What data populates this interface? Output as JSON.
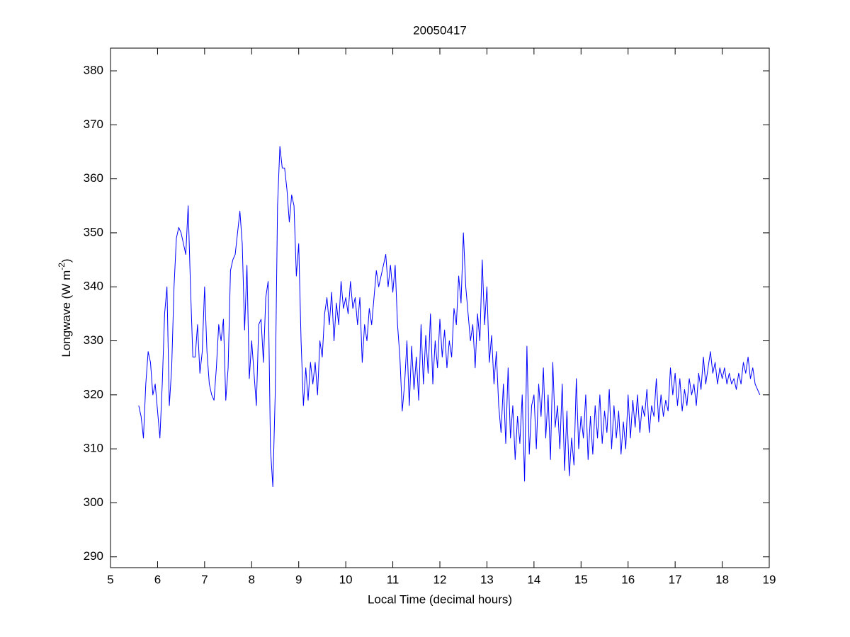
{
  "chart_data": {
    "type": "line",
    "title": "20050417",
    "xlabel": "Local Time (decimal hours)",
    "ylabel_parts": [
      "Longwave (W m",
      "-2",
      ")"
    ],
    "color": "#0000ff",
    "grid": false,
    "xlim": [
      5,
      19
    ],
    "ylim": [
      288,
      384.2
    ],
    "xticks": [
      5,
      6,
      7,
      8,
      9,
      10,
      11,
      12,
      13,
      14,
      15,
      16,
      17,
      18,
      19
    ],
    "yticks": [
      290,
      300,
      310,
      320,
      330,
      340,
      350,
      360,
      370,
      380
    ],
    "x": [
      5.6,
      5.65,
      5.7,
      5.75,
      5.8,
      5.85,
      5.9,
      5.95,
      6.0,
      6.05,
      6.1,
      6.15,
      6.2,
      6.25,
      6.3,
      6.35,
      6.4,
      6.45,
      6.5,
      6.55,
      6.6,
      6.65,
      6.7,
      6.75,
      6.8,
      6.85,
      6.9,
      6.95,
      7.0,
      7.05,
      7.1,
      7.15,
      7.2,
      7.25,
      7.3,
      7.35,
      7.4,
      7.45,
      7.5,
      7.55,
      7.6,
      7.65,
      7.7,
      7.75,
      7.8,
      7.85,
      7.9,
      7.95,
      8.0,
      8.05,
      8.1,
      8.15,
      8.2,
      8.25,
      8.3,
      8.35,
      8.4,
      8.45,
      8.5,
      8.55,
      8.6,
      8.65,
      8.7,
      8.75,
      8.8,
      8.85,
      8.9,
      8.95,
      9.0,
      9.05,
      9.1,
      9.15,
      9.2,
      9.25,
      9.3,
      9.35,
      9.4,
      9.45,
      9.5,
      9.55,
      9.6,
      9.65,
      9.7,
      9.75,
      9.8,
      9.85,
      9.9,
      9.95,
      10.0,
      10.05,
      10.1,
      10.15,
      10.2,
      10.25,
      10.3,
      10.35,
      10.4,
      10.45,
      10.5,
      10.55,
      10.6,
      10.65,
      10.7,
      10.75,
      10.8,
      10.85,
      10.9,
      10.95,
      11.0,
      11.05,
      11.1,
      11.15,
      11.2,
      11.25,
      11.3,
      11.35,
      11.4,
      11.45,
      11.5,
      11.55,
      11.6,
      11.65,
      11.7,
      11.75,
      11.8,
      11.85,
      11.9,
      11.95,
      12.0,
      12.05,
      12.1,
      12.15,
      12.2,
      12.25,
      12.3,
      12.35,
      12.4,
      12.45,
      12.5,
      12.55,
      12.6,
      12.65,
      12.7,
      12.75,
      12.8,
      12.85,
      12.9,
      12.95,
      13.0,
      13.05,
      13.1,
      13.15,
      13.2,
      13.25,
      13.3,
      13.35,
      13.4,
      13.45,
      13.5,
      13.55,
      13.6,
      13.65,
      13.7,
      13.75,
      13.8,
      13.85,
      13.9,
      13.95,
      14.0,
      14.05,
      14.1,
      14.15,
      14.2,
      14.25,
      14.3,
      14.35,
      14.4,
      14.45,
      14.5,
      14.55,
      14.6,
      14.65,
      14.7,
      14.75,
      14.8,
      14.85,
      14.9,
      14.95,
      15.0,
      15.05,
      15.1,
      15.15,
      15.2,
      15.25,
      15.3,
      15.35,
      15.4,
      15.45,
      15.5,
      15.55,
      15.6,
      15.65,
      15.7,
      15.75,
      15.8,
      15.85,
      15.9,
      15.95,
      16.0,
      16.05,
      16.1,
      16.15,
      16.2,
      16.25,
      16.3,
      16.35,
      16.4,
      16.45,
      16.5,
      16.55,
      16.6,
      16.65,
      16.7,
      16.75,
      16.8,
      16.85,
      16.9,
      16.95,
      17.0,
      17.05,
      17.1,
      17.15,
      17.2,
      17.25,
      17.3,
      17.35,
      17.4,
      17.45,
      17.5,
      17.55,
      17.6,
      17.65,
      17.7,
      17.75,
      17.8,
      17.85,
      17.9,
      17.95,
      18.0,
      18.05,
      18.1,
      18.15,
      18.2,
      18.25,
      18.3,
      18.35,
      18.4,
      18.45,
      18.5,
      18.55,
      18.6,
      18.65,
      18.7,
      18.75,
      18.8
    ],
    "values": [
      318,
      316,
      312,
      322,
      328,
      326,
      320,
      322,
      317,
      312,
      322,
      335,
      340,
      318,
      325,
      340,
      349,
      351,
      350,
      348,
      346,
      355,
      340,
      327,
      327,
      333,
      324,
      328,
      340,
      328,
      322,
      320,
      319,
      325,
      333,
      330,
      334,
      319,
      325,
      343,
      345,
      346,
      350,
      354,
      348,
      332,
      344,
      323,
      330,
      324,
      318,
      333,
      334,
      326,
      338,
      341,
      310,
      303,
      320,
      355,
      366,
      362,
      362,
      358,
      352,
      357,
      355,
      342,
      348,
      330,
      318,
      325,
      319,
      326,
      322,
      326,
      320,
      330,
      327,
      335,
      338,
      333,
      339,
      330,
      337,
      333,
      341,
      336,
      338,
      335,
      341,
      336,
      338,
      333,
      338,
      326,
      333,
      330,
      336,
      333,
      338,
      343,
      340,
      342,
      344,
      346,
      340,
      344,
      339,
      344,
      333,
      327,
      317,
      322,
      330,
      318,
      329,
      321,
      327,
      319,
      333,
      322,
      331,
      324,
      335,
      322,
      330,
      325,
      334,
      327,
      332,
      325,
      330,
      327,
      336,
      333,
      342,
      337,
      350,
      340,
      335,
      330,
      333,
      325,
      335,
      330,
      345,
      333,
      340,
      326,
      331,
      322,
      328,
      318,
      313,
      322,
      311,
      325,
      312,
      318,
      308,
      316,
      311,
      320,
      304,
      329,
      309,
      318,
      320,
      310,
      322,
      316,
      325,
      312,
      320,
      308,
      326,
      314,
      318,
      310,
      322,
      306,
      317,
      305,
      312,
      307,
      323,
      310,
      316,
      312,
      320,
      308,
      316,
      309,
      318,
      312,
      320,
      311,
      317,
      313,
      321,
      310,
      318,
      312,
      317,
      309,
      315,
      310,
      320,
      312,
      319,
      314,
      320,
      313,
      318,
      316,
      321,
      313,
      318,
      316,
      323,
      315,
      320,
      316,
      319,
      317,
      325,
      320,
      324,
      318,
      323,
      317,
      321,
      318,
      323,
      320,
      322,
      318,
      324,
      321,
      327,
      322,
      325,
      328,
      324,
      326,
      322,
      325,
      323,
      325,
      322,
      324,
      322,
      323,
      321,
      324,
      322,
      326,
      324,
      327,
      323,
      325,
      322,
      321,
      320
    ]
  }
}
